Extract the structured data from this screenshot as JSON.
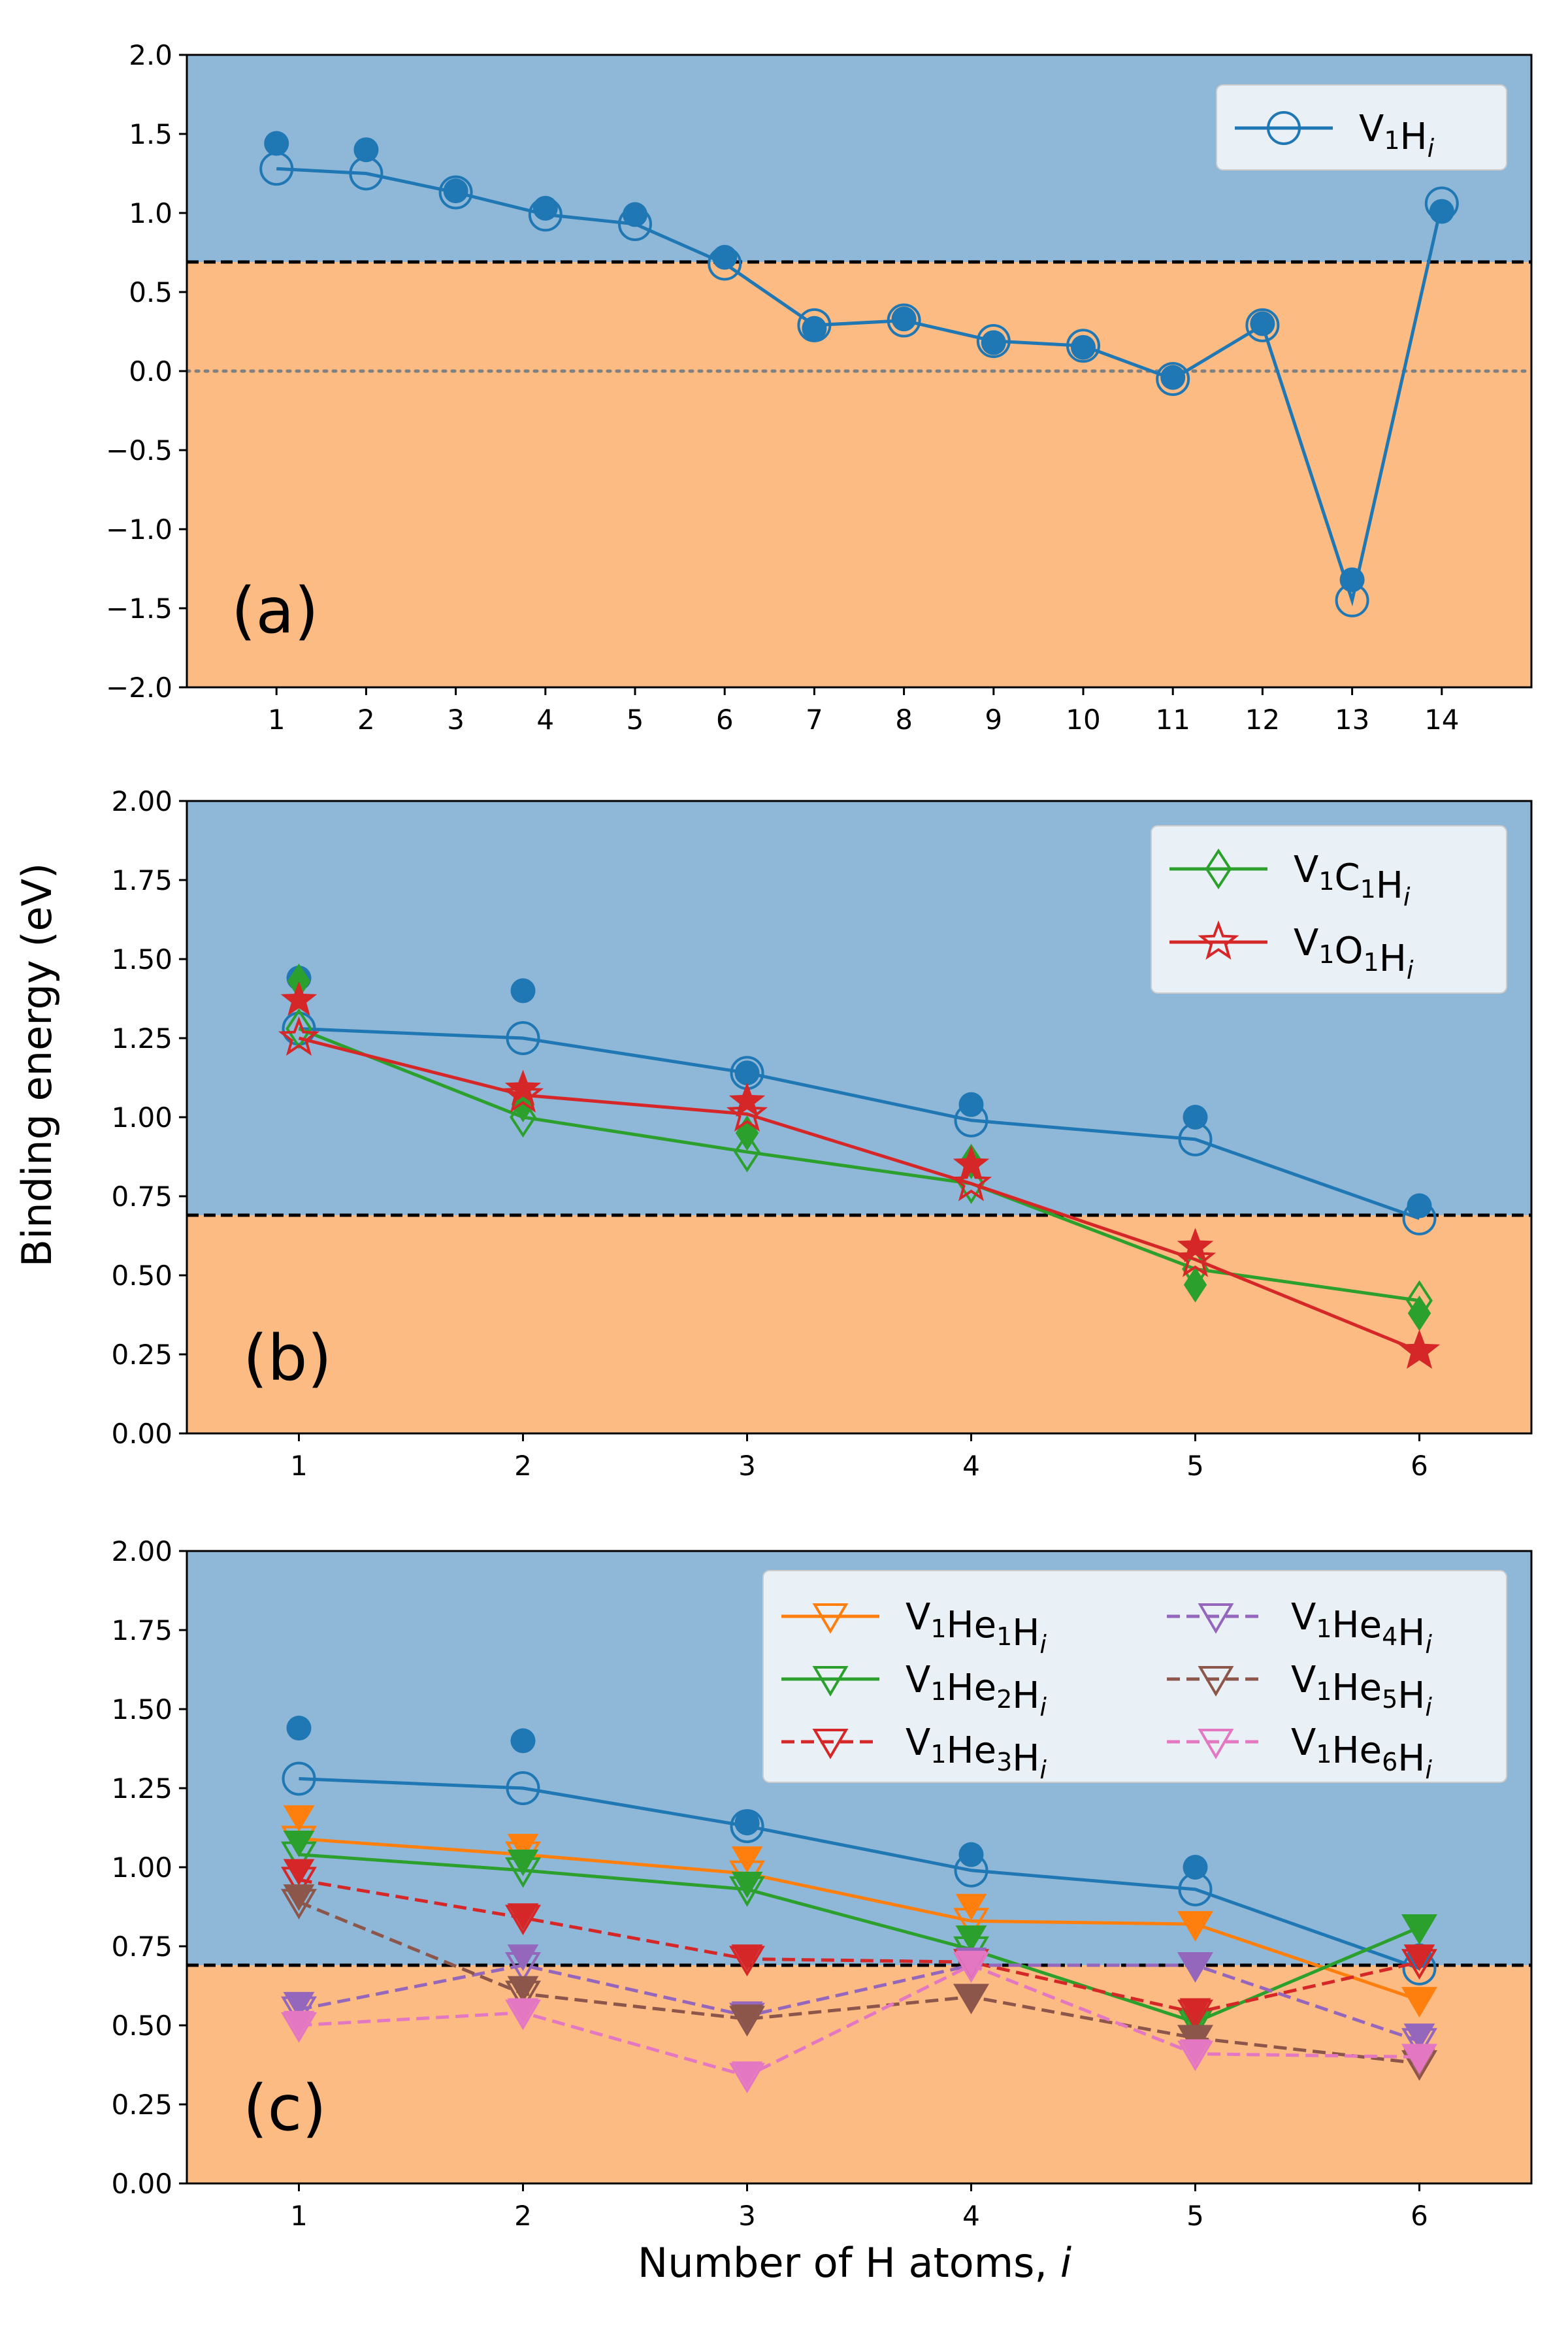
{
  "chart_data": [
    {
      "type": "line",
      "panel_label": "(a)",
      "x": [
        1,
        2,
        3,
        4,
        5,
        6,
        7,
        8,
        9,
        10,
        11,
        12,
        13,
        14
      ],
      "xlim": [
        0,
        15
      ],
      "ylim": [
        -2.0,
        2.0
      ],
      "yticks": [
        -2.0,
        -1.5,
        -1.0,
        -0.5,
        0.0,
        0.5,
        1.0,
        1.5,
        2.0
      ],
      "ytick_labels": [
        "−2.0",
        "−1.5",
        "−1.0",
        "−0.5",
        "0.0",
        "0.5",
        "1.0",
        "1.5",
        "2.0"
      ],
      "threshold": 0.69,
      "zero_line": true,
      "regions": {
        "above_color": "#8fb8d8",
        "below_color": "#fdbb84"
      },
      "filled_points": {
        "color": "#1f77b4",
        "values": [
          1.44,
          1.4,
          1.14,
          1.03,
          0.99,
          0.72,
          0.27,
          0.33,
          0.18,
          0.15,
          -0.04,
          0.3,
          -1.32,
          1.01
        ]
      },
      "series": [
        {
          "name": "V1Hi",
          "label_main": "V",
          "label_parts": [
            [
              "V",
              ""
            ],
            [
              "1",
              "sub"
            ],
            [
              "H",
              ""
            ],
            [
              "i",
              "subi"
            ]
          ],
          "color": "#1f77b4",
          "marker": "circle",
          "dashed": false,
          "values": [
            1.28,
            1.25,
            1.13,
            0.99,
            0.93,
            0.68,
            0.29,
            0.32,
            0.19,
            0.16,
            -0.05,
            0.29,
            -1.45,
            1.06
          ]
        }
      ],
      "legend_position": "top-right"
    },
    {
      "type": "line",
      "panel_label": "(b)",
      "x": [
        1,
        2,
        3,
        4,
        5,
        6
      ],
      "xlim": [
        0.5,
        6.5
      ],
      "ylim": [
        0.0,
        2.0
      ],
      "yticks": [
        0.0,
        0.25,
        0.5,
        0.75,
        1.0,
        1.25,
        1.5,
        1.75,
        2.0
      ],
      "ytick_labels": [
        "0.00",
        "0.25",
        "0.50",
        "0.75",
        "1.00",
        "1.25",
        "1.50",
        "1.75",
        "2.00"
      ],
      "threshold": 0.69,
      "regions": {
        "above_color": "#8fb8d8",
        "below_color": "#fdbb84"
      },
      "filled_points": {
        "color": "#1f77b4",
        "values": [
          1.44,
          1.4,
          1.14,
          1.04,
          1.0,
          0.72
        ]
      },
      "reference_series": {
        "color": "#1f77b4",
        "marker": "circle",
        "values": [
          1.28,
          1.25,
          1.14,
          0.99,
          0.93,
          0.68
        ]
      },
      "series": [
        {
          "name": "V1C1Hi",
          "label_parts": [
            [
              "V",
              ""
            ],
            [
              "1",
              "sub"
            ],
            [
              "C",
              ""
            ],
            [
              "1",
              "sub"
            ],
            [
              "H",
              ""
            ],
            [
              "i",
              "subi"
            ]
          ],
          "color": "#2ca02c",
          "marker": "diamond",
          "dashed": false,
          "values": [
            1.28,
            1.0,
            0.89,
            0.79,
            0.52,
            0.42
          ],
          "filled_values": [
            1.43,
            1.04,
            0.95,
            0.86,
            0.47,
            0.38
          ]
        },
        {
          "name": "V1O1Hi",
          "label_parts": [
            [
              "V",
              ""
            ],
            [
              "1",
              "sub"
            ],
            [
              "O",
              ""
            ],
            [
              "1",
              "sub"
            ],
            [
              "H",
              ""
            ],
            [
              "i",
              "subi"
            ]
          ],
          "color": "#d62728",
          "marker": "star",
          "dashed": false,
          "values": [
            1.25,
            1.07,
            1.01,
            0.79,
            0.55,
            0.26
          ],
          "filled_values": [
            1.37,
            1.09,
            1.05,
            0.85,
            0.59,
            0.26
          ]
        }
      ],
      "legend_position": "top-right"
    },
    {
      "type": "line",
      "panel_label": "(c)",
      "x": [
        1,
        2,
        3,
        4,
        5,
        6
      ],
      "xlim": [
        0.5,
        6.5
      ],
      "ylim": [
        0.0,
        2.0
      ],
      "yticks": [
        0.0,
        0.25,
        0.5,
        0.75,
        1.0,
        1.25,
        1.5,
        1.75,
        2.0
      ],
      "ytick_labels": [
        "0.00",
        "0.25",
        "0.50",
        "0.75",
        "1.00",
        "1.25",
        "1.50",
        "1.75",
        "2.00"
      ],
      "threshold": 0.69,
      "regions": {
        "above_color": "#8fb8d8",
        "below_color": "#fdbb84"
      },
      "filled_points": {
        "color": "#1f77b4",
        "values": [
          1.44,
          1.4,
          1.14,
          1.04,
          1.0,
          0.72
        ]
      },
      "reference_series": {
        "color": "#1f77b4",
        "marker": "circle",
        "values": [
          1.28,
          1.25,
          1.13,
          0.99,
          0.93,
          0.68
        ]
      },
      "series": [
        {
          "name": "V1He1Hi",
          "label_parts": [
            [
              "V",
              ""
            ],
            [
              "1",
              "sub"
            ],
            [
              "He",
              ""
            ],
            [
              "1",
              "sub"
            ],
            [
              "H",
              ""
            ],
            [
              "i",
              "subi"
            ]
          ],
          "color": "#ff7f0e",
          "marker": "tri_down",
          "dashed": false,
          "values": [
            1.09,
            1.04,
            0.98,
            0.83,
            0.82,
            0.58
          ],
          "filled_values": [
            1.16,
            1.07,
            1.03,
            0.88,
            0.82,
            0.58
          ]
        },
        {
          "name": "V1He2Hi",
          "label_parts": [
            [
              "V",
              ""
            ],
            [
              "1",
              "sub"
            ],
            [
              "He",
              ""
            ],
            [
              "2",
              "sub"
            ],
            [
              "H",
              ""
            ],
            [
              "i",
              "subi"
            ]
          ],
          "color": "#2ca02c",
          "marker": "tri_down",
          "dashed": false,
          "values": [
            1.04,
            0.99,
            0.93,
            0.74,
            0.51,
            0.81
          ],
          "filled_values": [
            1.08,
            1.02,
            0.95,
            0.78,
            0.52,
            0.81
          ]
        },
        {
          "name": "V1He3Hi",
          "label_parts": [
            [
              "V",
              ""
            ],
            [
              "1",
              "sub"
            ],
            [
              "He",
              ""
            ],
            [
              "3",
              "sub"
            ],
            [
              "H",
              ""
            ],
            [
              "i",
              "subi"
            ]
          ],
          "color": "#d62728",
          "marker": "tri_down",
          "dashed": true,
          "values": [
            0.96,
            0.84,
            0.71,
            0.7,
            0.54,
            0.7
          ],
          "filled_values": [
            0.99,
            0.85,
            0.72,
            0.7,
            0.55,
            0.72
          ]
        },
        {
          "name": "V1He4Hi",
          "label_parts": [
            [
              "V",
              ""
            ],
            [
              "1",
              "sub"
            ],
            [
              "He",
              ""
            ],
            [
              "4",
              "sub"
            ],
            [
              "H",
              ""
            ],
            [
              "i",
              "subi"
            ]
          ],
          "color": "#9467bd",
          "marker": "tri_down",
          "dashed": true,
          "values": [
            0.55,
            0.69,
            0.53,
            0.69,
            0.69,
            0.45
          ],
          "filled_values": [
            0.57,
            0.72,
            0.54,
            0.71,
            0.69,
            0.47
          ]
        },
        {
          "name": "V1He5Hi",
          "label_parts": [
            [
              "V",
              ""
            ],
            [
              "1",
              "sub"
            ],
            [
              "He",
              ""
            ],
            [
              "5",
              "sub"
            ],
            [
              "H",
              ""
            ],
            [
              "i",
              "subi"
            ]
          ],
          "color": "#8c564b",
          "marker": "tri_down",
          "dashed": true,
          "values": [
            0.89,
            0.6,
            0.52,
            0.59,
            0.46,
            0.38
          ],
          "filled_values": [
            0.91,
            0.62,
            0.53,
            0.59,
            0.46,
            0.39
          ]
        },
        {
          "name": "V1He6Hi",
          "label_parts": [
            [
              "V",
              ""
            ],
            [
              "1",
              "sub"
            ],
            [
              "He",
              ""
            ],
            [
              "6",
              "sub"
            ],
            [
              "H",
              ""
            ],
            [
              "i",
              "subi"
            ]
          ],
          "color": "#e377c2",
          "marker": "tri_down",
          "dashed": true,
          "values": [
            0.5,
            0.54,
            0.34,
            0.69,
            0.41,
            0.4
          ],
          "filled_values": [
            0.51,
            0.55,
            0.35,
            0.7,
            0.42,
            0.4
          ]
        }
      ],
      "legend_position": "top-right",
      "legend_columns": 2
    }
  ],
  "ylabel": "Binding energy (eV)",
  "xlabel_main": "Number of H atoms, ",
  "xlabel_var": "i"
}
